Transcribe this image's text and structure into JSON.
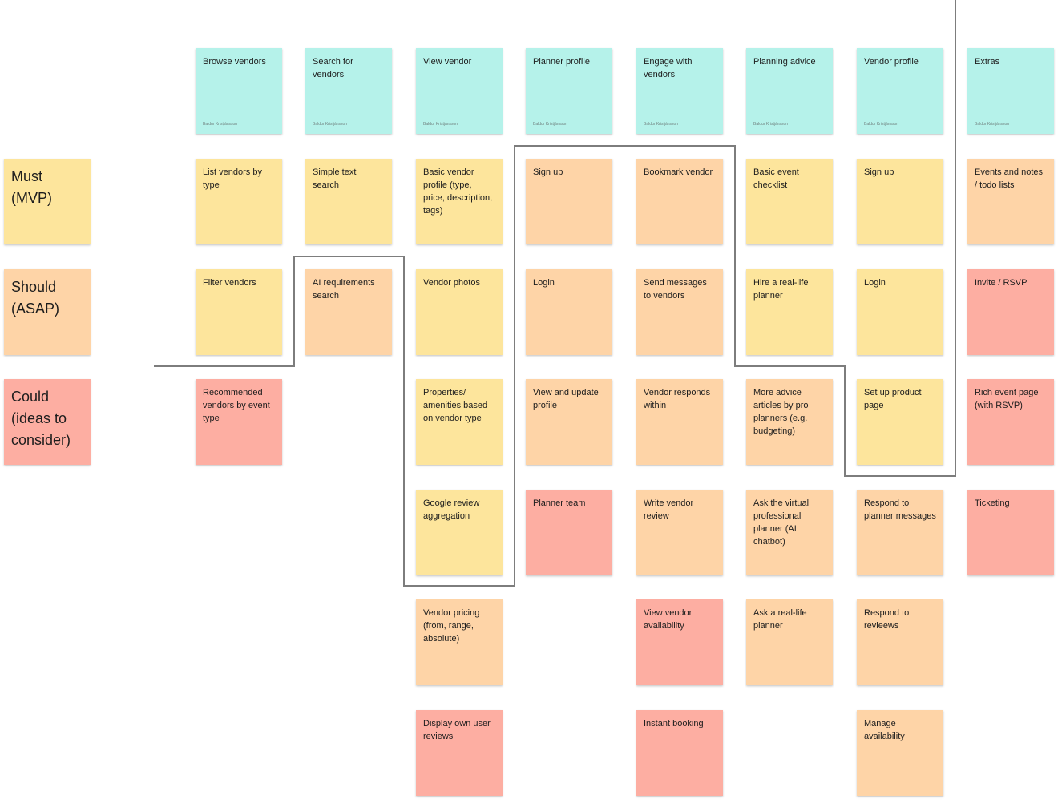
{
  "priority_labels": {
    "must": "Must\n(MVP)",
    "should": "Should\n(ASAP)",
    "could": "Could\n(ideas to\nconsider)"
  },
  "author": "Baldur Kristjánsson",
  "headers": [
    "Browse vendors",
    "Search for vendors",
    "View vendor",
    "Planner profile",
    "Engage with vendors",
    "Planning advice",
    "Vendor profile",
    "Extras"
  ],
  "cards": {
    "browse": [
      "List vendors by type",
      "Filter vendors",
      "Recommended vendors by event type"
    ],
    "search": [
      "Simple text search",
      "AI requirements search"
    ],
    "view_vendor": [
      "Basic vendor profile (type, price, description, tags)",
      "Vendor photos",
      "Properties/ amenities based on vendor type",
      "Google review aggregation",
      "Vendor pricing (from, range, absolute)",
      "Display own user reviews"
    ],
    "planner_profile": [
      "Sign up",
      "Login",
      "View and update profile",
      "Planner team"
    ],
    "engage": [
      "Bookmark vendor",
      "Send messages to vendors",
      "Vendor responds within",
      "Write vendor review",
      "View vendor availability",
      "Instant booking"
    ],
    "planning_advice": [
      "Basic event checklist",
      "Hire a real-life planner",
      "More advice articles by pro planners (e.g. budgeting)",
      "Ask the virtual professional planner (AI chatbot)",
      "Ask a real-life planner"
    ],
    "vendor_profile": [
      "Sign up",
      "Login",
      "Set up product page",
      "Respond to planner messages",
      "Respond to revieews",
      "Manage availability"
    ],
    "extras": [
      "Events and notes / todo lists",
      "Invite / RSVP",
      "Rich event page (with RSVP)",
      "Ticketing"
    ]
  },
  "colors": {
    "header": "#b5f2ea",
    "must": "#fde59c",
    "should": "#fed4a7",
    "could": "#fdaea2",
    "line": "#7d7d7d"
  }
}
